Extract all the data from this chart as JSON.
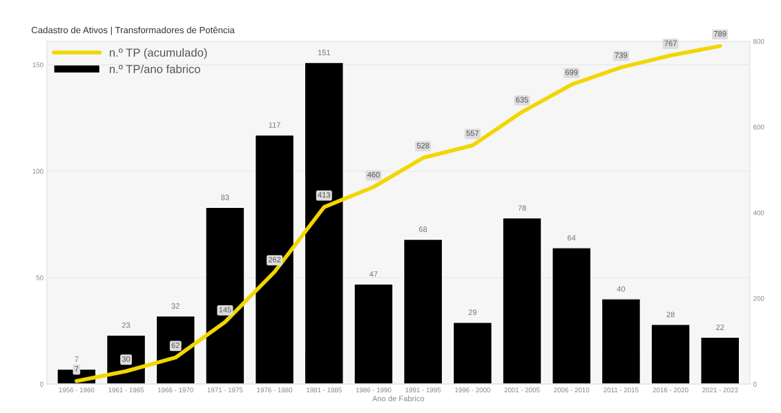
{
  "chart_data": {
    "type": "bar",
    "title": "Cadastro de Ativos | Transformadores de Potência",
    "xlabel": "Ano de Fabrico",
    "categories": [
      "1956 - 1960",
      "1961 - 1965",
      "1966 - 1970",
      "1971 - 1975",
      "1976 - 1980",
      "1981 - 1985",
      "1986 - 1990",
      "1991 - 1995",
      "1996 - 2000",
      "2001 - 2005",
      "2006 - 2010",
      "2011 - 2015",
      "2016 - 2020",
      "2021 - 2023"
    ],
    "series": [
      {
        "name": "n.º TP (acumulado)",
        "type": "line",
        "axis": "y2",
        "color": "#f2d600",
        "values": [
          7,
          30,
          62,
          145,
          262,
          413,
          460,
          528,
          557,
          635,
          699,
          739,
          767,
          789
        ]
      },
      {
        "name": "n.º TP/ano fabrico",
        "color": "#000000",
        "values": [
          7,
          23,
          32,
          83,
          117,
          151,
          47,
          68,
          29,
          78,
          64,
          40,
          28,
          22
        ]
      }
    ],
    "ylim": [
      0,
      161
    ],
    "yticks": [
      0,
      50,
      100,
      150
    ],
    "y2lim": [
      0,
      800
    ],
    "y2ticks": [
      0,
      200,
      400,
      600,
      800
    ],
    "grid": "y",
    "legend": "top left",
    "data_labels": true,
    "marker": "none",
    "line_style": "solid"
  }
}
